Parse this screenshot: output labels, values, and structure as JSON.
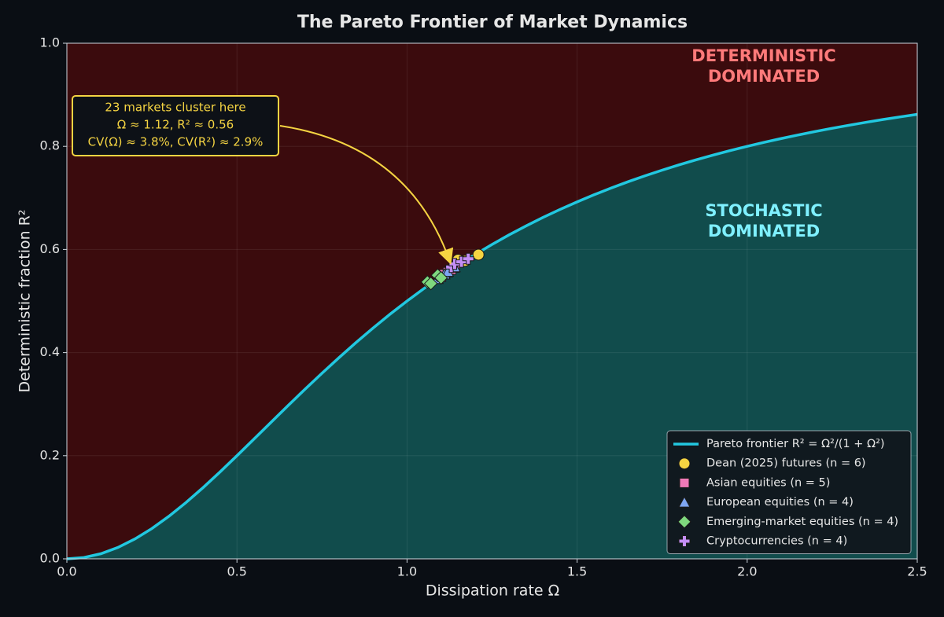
{
  "chart_data": {
    "type": "scatter",
    "title": "The Pareto Frontier of Market Dynamics",
    "x_label": "Dissipation rate Ω",
    "y_label": "Deterministic fraction R²",
    "xlim": [
      0,
      2.5
    ],
    "ylim": [
      0,
      1
    ],
    "xticks": [
      {
        "value": 0,
        "label": "0.0"
      },
      0.5,
      {
        "value": 1,
        "label": "1.0"
      },
      1.5,
      {
        "value": 2,
        "label": "2.0"
      },
      2.5
    ],
    "yticks": [
      {
        "value": 0,
        "label": "0.0"
      },
      0.2,
      0.4,
      0.6,
      0.8,
      {
        "value": 1,
        "label": "1.0"
      }
    ],
    "grid": true,
    "legend": "lower right",
    "fill_above": "#3b0b0d",
    "fill_below": "#114c4c",
    "region_labels": [
      {
        "lines": [
          "DETERMINISTIC",
          "DOMINATED"
        ],
        "color": "#ff7a7a"
      },
      {
        "lines": [
          "STOCHASTIC",
          "DOMINATED"
        ],
        "color": "#7ff0ff"
      }
    ],
    "annotation": [
      "23 markets cluster here",
      "Ω ≈ 1.12,  R² ≈ 0.56",
      "CV(Ω) ≈ 3.8%,  CV(R²) ≈ 2.9%"
    ],
    "series": [
      {
        "name": "Pareto frontier  R² = Ω²/(1 + Ω²)",
        "type": "line",
        "color": "#22c8e0",
        "x": [
          0,
          0.05,
          0.1,
          0.15,
          0.2,
          0.25,
          0.3,
          0.35,
          0.4,
          0.45,
          0.5,
          0.55,
          0.6,
          0.65,
          0.7,
          0.75,
          0.8,
          0.85,
          0.9,
          0.95,
          1.0,
          1.05,
          1.1,
          1.15,
          1.2,
          1.25,
          1.3,
          1.35,
          1.4,
          1.45,
          1.5,
          1.55,
          1.6,
          1.65,
          1.7,
          1.75,
          1.8,
          1.85,
          1.9,
          1.95,
          2.0,
          2.05,
          2.1,
          2.15,
          2.2,
          2.25,
          2.3,
          2.35,
          2.4,
          2.45,
          2.5
        ],
        "values": [
          0,
          0.0025,
          0.0099,
          0.022,
          0.0385,
          0.0588,
          0.0826,
          0.1091,
          0.1379,
          0.1684,
          0.2,
          0.2322,
          0.2647,
          0.297,
          0.3289,
          0.36,
          0.3902,
          0.4194,
          0.4475,
          0.4744,
          0.5,
          0.5244,
          0.5475,
          0.5694,
          0.5902,
          0.6098,
          0.6283,
          0.6457,
          0.6622,
          0.6777,
          0.6923,
          0.7061,
          0.7191,
          0.7314,
          0.7429,
          0.7538,
          0.7642,
          0.7739,
          0.7831,
          0.7918,
          0.8,
          0.8078,
          0.8152,
          0.8221,
          0.8288,
          0.8351,
          0.841,
          0.8467,
          0.8521,
          0.8572,
          0.8621
        ]
      },
      {
        "name": "Dean (2025) futures (n = 6)",
        "type": "scatter",
        "marker": "circle",
        "color": "#f5d442",
        "x": [
          1.1,
          1.12,
          1.13,
          1.15,
          1.17,
          1.21
        ],
        "values": [
          0.547,
          0.556,
          0.561,
          0.58,
          0.578,
          0.59
        ]
      },
      {
        "name": "Asian equities (n = 5)",
        "type": "scatter",
        "marker": "square",
        "color": "#f07ab8",
        "x": [
          1.1,
          1.11,
          1.12,
          1.13,
          1.14
        ],
        "values": [
          0.547,
          0.552,
          0.556,
          0.561,
          0.565
        ]
      },
      {
        "name": "European equities (n = 4)",
        "type": "scatter",
        "marker": "triangle",
        "color": "#7ea6f2",
        "x": [
          1.09,
          1.11,
          1.12,
          1.14
        ],
        "values": [
          0.543,
          0.552,
          0.557,
          0.566
        ]
      },
      {
        "name": "Emerging-market equities (n = 4)",
        "type": "scatter",
        "marker": "diamond",
        "color": "#7ed87e",
        "x": [
          1.06,
          1.07,
          1.09,
          1.1
        ],
        "values": [
          0.537,
          0.534,
          0.55,
          0.545
        ]
      },
      {
        "name": "Cryptocurrencies (n = 4)",
        "type": "scatter",
        "marker": "plus",
        "color": "#c48ef5",
        "x": [
          1.13,
          1.14,
          1.16,
          1.18
        ],
        "values": [
          0.566,
          0.572,
          0.576,
          0.582
        ]
      }
    ]
  }
}
